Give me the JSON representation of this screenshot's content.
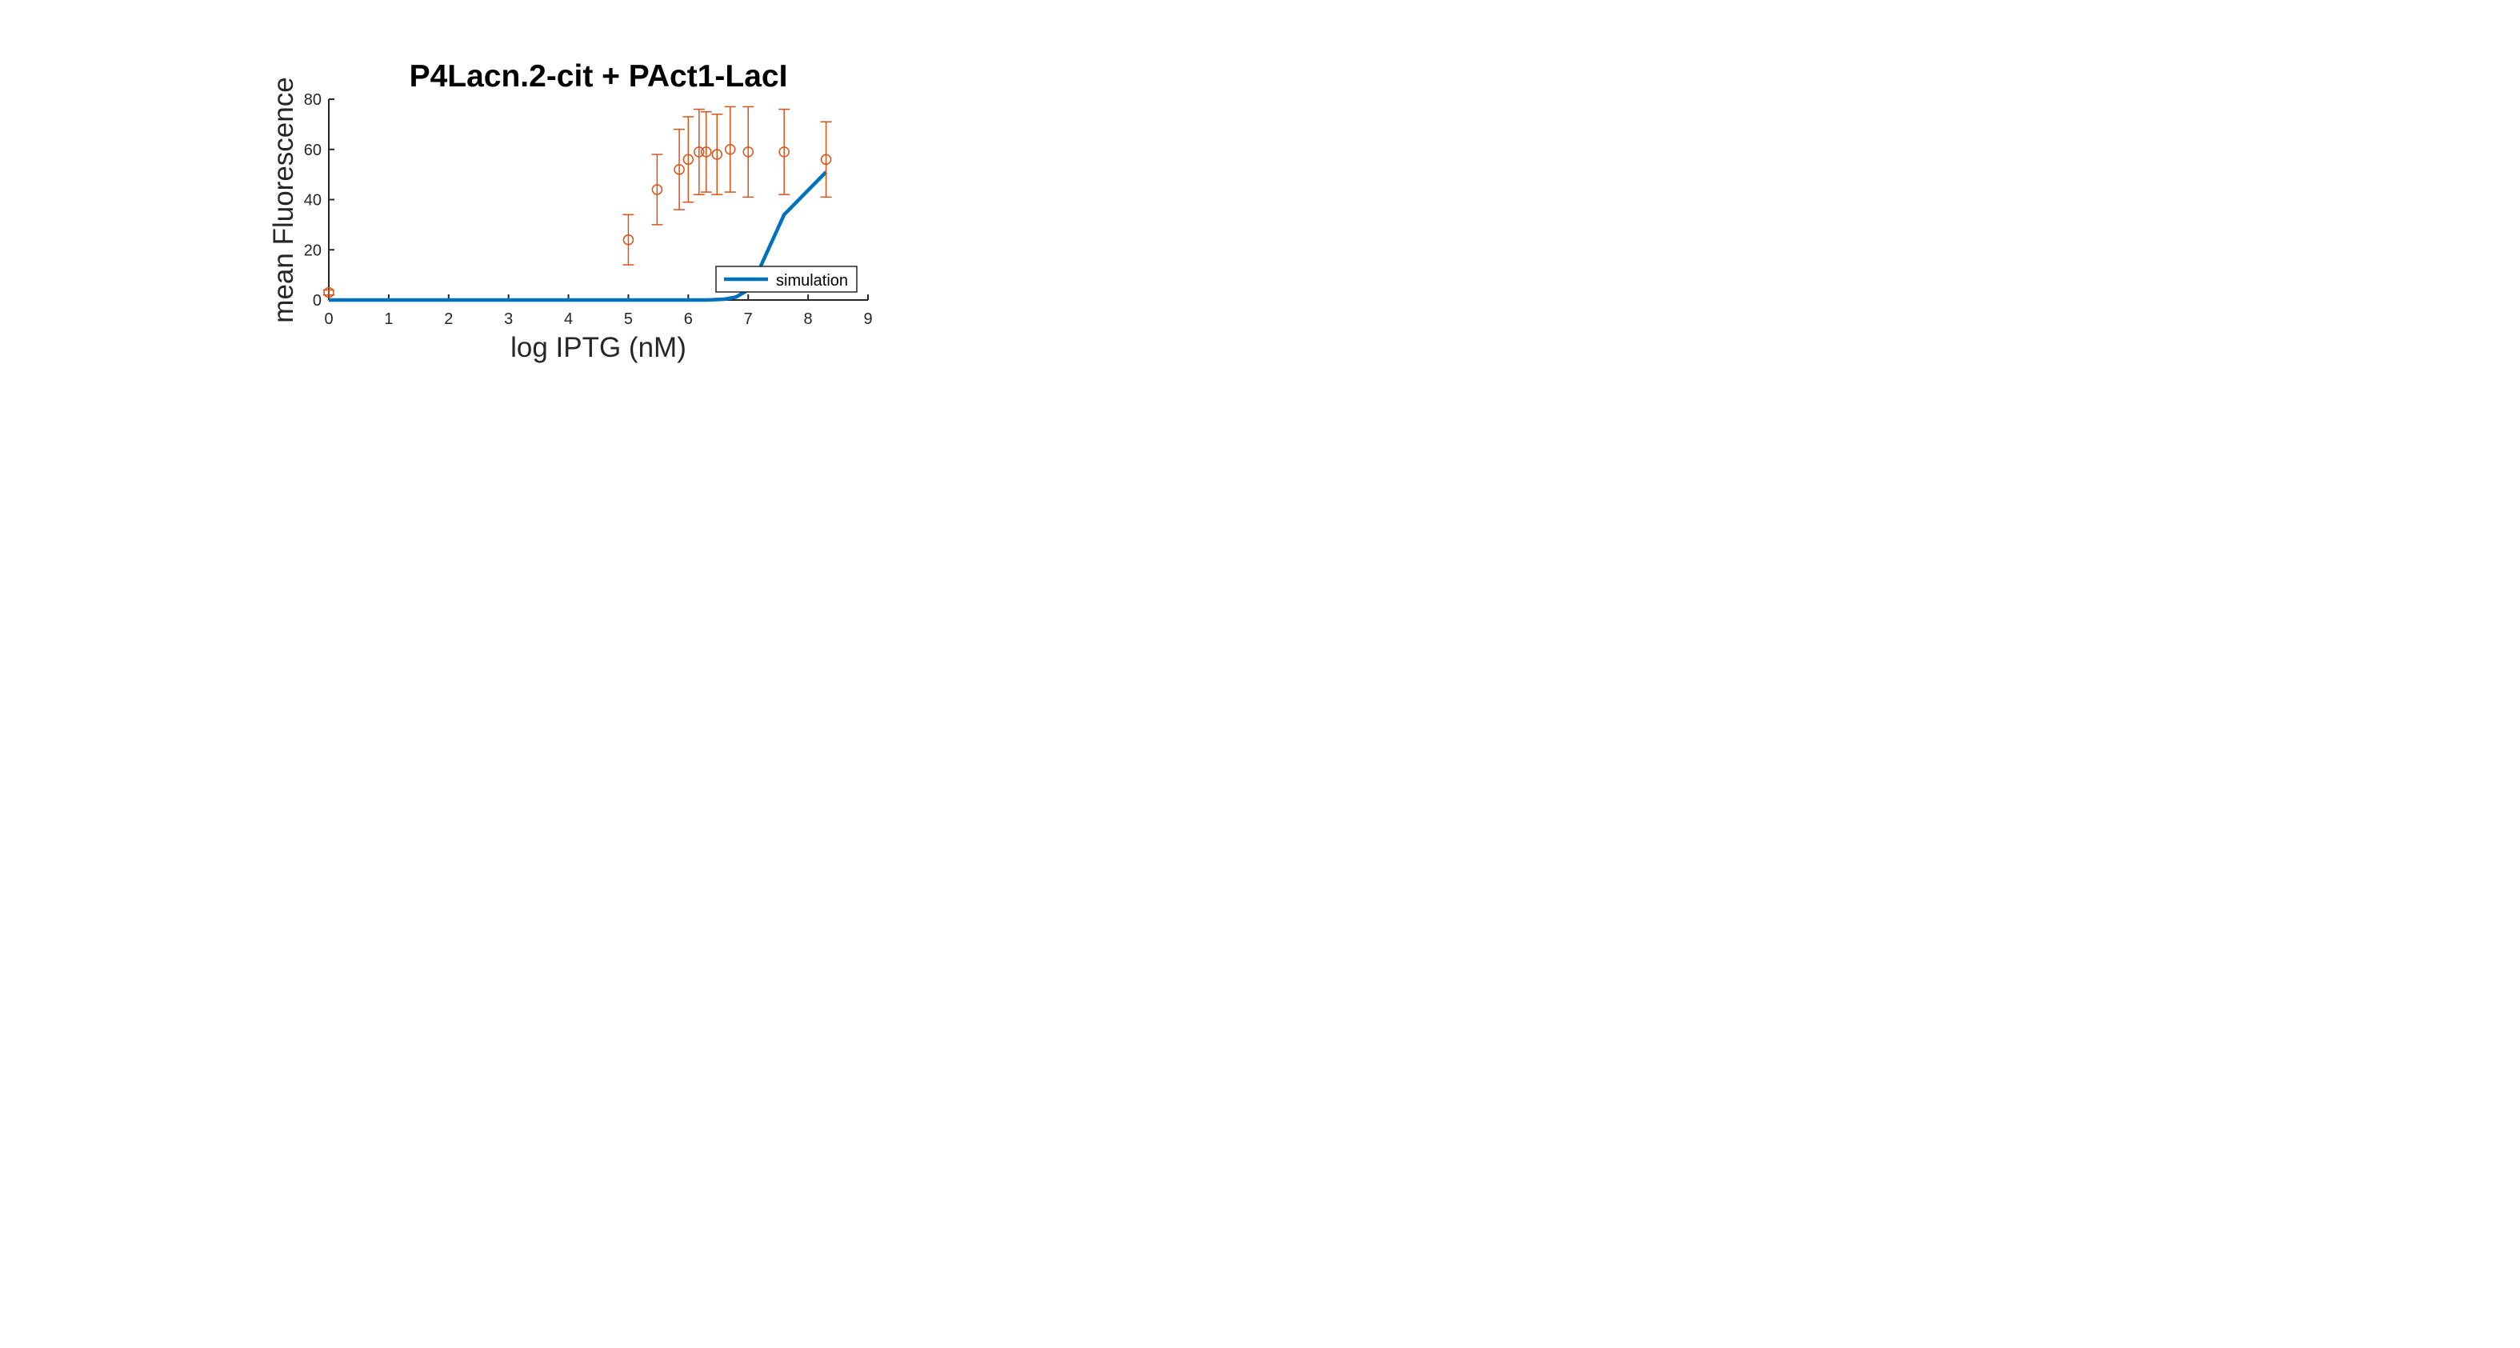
{
  "chart_data": {
    "type": "line",
    "title": "P4Lacn.2-cit + PAct1-LacI",
    "xlabel": "log IPTG (nM)",
    "ylabel": "mean Fluorescence",
    "xlim": [
      0,
      9
    ],
    "ylim": [
      0,
      80
    ],
    "x_ticks": [
      "0",
      "1",
      "2",
      "3",
      "4",
      "5",
      "6",
      "7",
      "8",
      "9"
    ],
    "y_ticks": [
      "0",
      "20",
      "40",
      "60",
      "80"
    ],
    "grid": false,
    "legend_position": "inside-lower-right",
    "series": [
      {
        "name": "simulation",
        "kind": "line",
        "color": "#0072bd",
        "x": [
          0,
          1,
          2,
          3,
          4,
          5,
          5.5,
          6,
          6.3,
          6.6,
          6.8,
          7.0,
          7.2,
          7.6,
          8.3
        ],
        "y": [
          0,
          0,
          0,
          0,
          0,
          0,
          0,
          0,
          0,
          0.3,
          1.2,
          4,
          13,
          34,
          51
        ]
      },
      {
        "kind": "errorbar",
        "color": "#d95319",
        "x": [
          0,
          5.0,
          5.48,
          5.85,
          6.0,
          6.18,
          6.3,
          6.48,
          6.7,
          7.0,
          7.6,
          8.3
        ],
        "y": [
          3,
          24,
          44,
          52,
          56,
          59,
          59,
          58,
          60,
          59,
          59,
          56
        ],
        "err": [
          1,
          10,
          14,
          16,
          17,
          17,
          16,
          16,
          17,
          18,
          17,
          15
        ]
      }
    ]
  }
}
